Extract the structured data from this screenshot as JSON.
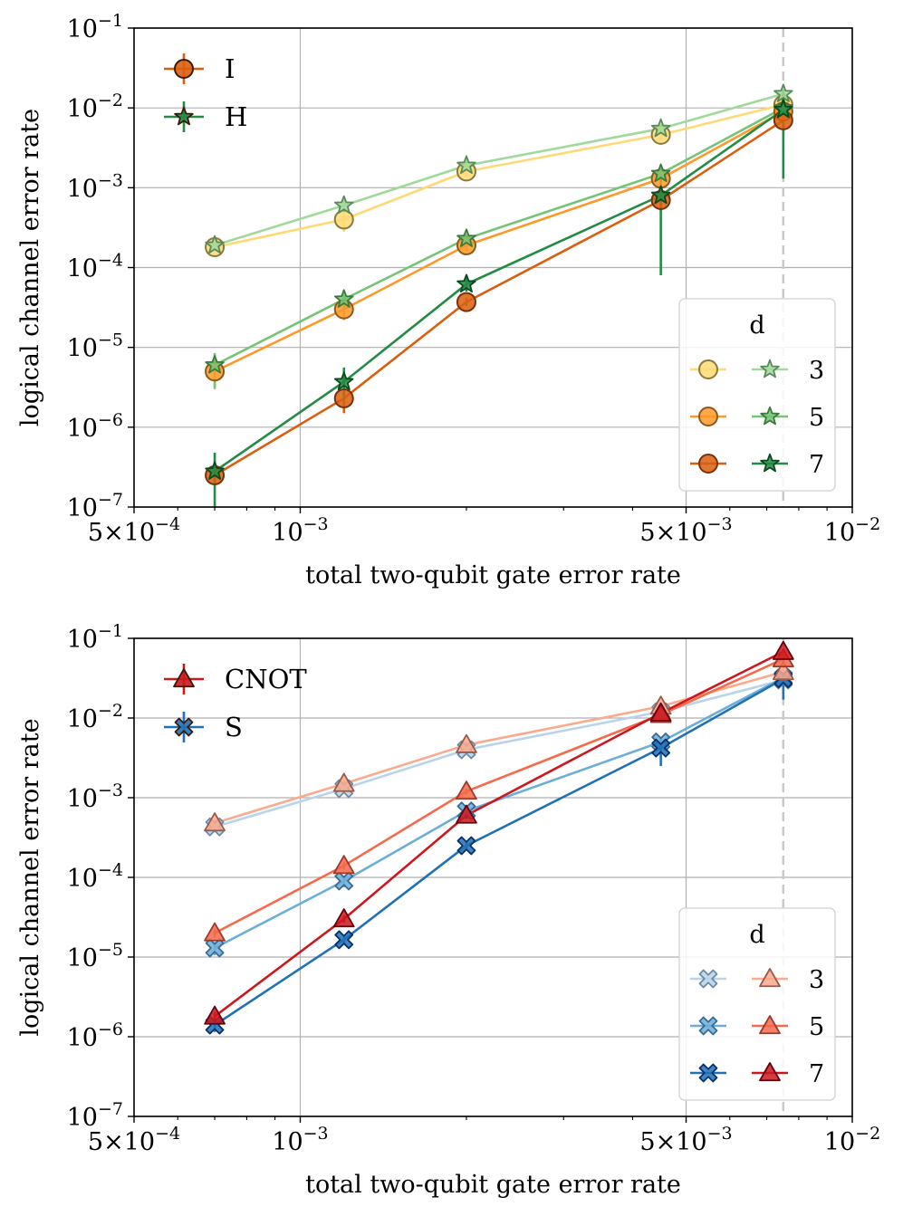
{
  "chart_data": [
    {
      "type": "line",
      "xscale": "log",
      "yscale": "log",
      "xlabel": "total two-qubit gate error rate",
      "ylabel": "logical channel error rate",
      "xlim": [
        0.0005,
        0.01
      ],
      "ylim": [
        1e-07,
        0.1
      ],
      "x_ticks": [
        {
          "value": 0.0005,
          "base": "5×10",
          "exp": "−4"
        },
        {
          "value": 0.001,
          "base": "10",
          "exp": "−3"
        },
        {
          "value": 0.005,
          "base": "5×10",
          "exp": "−3"
        },
        {
          "value": 0.01,
          "base": "10",
          "exp": "−2"
        }
      ],
      "y_ticks": [
        {
          "value": 1e-07,
          "base": "10",
          "exp": "−7"
        },
        {
          "value": 1e-06,
          "base": "10",
          "exp": "−6"
        },
        {
          "value": 1e-05,
          "base": "10",
          "exp": "−5"
        },
        {
          "value": 0.0001,
          "base": "10",
          "exp": "−4"
        },
        {
          "value": 0.001,
          "base": "10",
          "exp": "−3"
        },
        {
          "value": 0.01,
          "base": "10",
          "exp": "−2"
        },
        {
          "value": 0.1,
          "base": "10",
          "exp": "−1"
        }
      ],
      "threshold_x": 0.0075,
      "grid": true,
      "gate_legend": {
        "position": "top-left",
        "entries": [
          {
            "label": "I",
            "marker": "circle",
            "color": "#d95f0e"
          },
          {
            "label": "H",
            "marker": "star",
            "color": "#238b45"
          }
        ]
      },
      "d_legend": {
        "position": "bottom-right",
        "title": "d",
        "labels": [
          "3",
          "5",
          "7"
        ]
      },
      "x": [
        0.0007,
        0.0012,
        0.002,
        0.0045,
        0.0075
      ],
      "series": [
        {
          "name": "I",
          "d": "3",
          "marker": "circle",
          "color": "#fed976",
          "edge": "#8c7a3a",
          "values": [
            0.00018,
            0.0004,
            0.0016,
            0.0046,
            0.011
          ],
          "err_low": [
            0.00016,
            0.00028,
            0.0014,
            0.004,
            0.009
          ],
          "err_high": [
            0.0002,
            0.00052,
            0.0018,
            0.0052,
            0.013
          ]
        },
        {
          "name": "I",
          "d": "5",
          "marker": "circle",
          "color": "#fe9929",
          "edge": "#8c5a1a",
          "values": [
            5e-06,
            3e-05,
            0.00019,
            0.0013,
            0.009
          ],
          "err_low": [
            3.2e-06,
            2.2e-05,
            0.00016,
            0.00095,
            0.007
          ],
          "err_high": [
            7.5e-06,
            3.8e-05,
            0.00022,
            0.0016,
            0.011
          ]
        },
        {
          "name": "I",
          "d": "7",
          "marker": "circle",
          "color": "#d95f0e",
          "edge": "#7a300a",
          "values": [
            2.5e-07,
            2.3e-06,
            3.7e-05,
            0.0007,
            0.007
          ],
          "err_low": [
            2e-07,
            1.5e-06,
            3.3e-05,
            0.0005,
            0.005
          ],
          "err_high": [
            3e-07,
            2.7e-06,
            4.2e-05,
            0.001,
            0.009
          ]
        },
        {
          "name": "H",
          "d": "3",
          "marker": "star",
          "color": "#a1d99b",
          "edge": "#5a8a5a",
          "values": [
            0.00019,
            0.0006,
            0.0019,
            0.0055,
            0.015
          ],
          "err_low": [
            0.00017,
            0.00048,
            0.0017,
            0.0048,
            0.013
          ],
          "err_high": [
            0.00021,
            0.00072,
            0.0022,
            0.0062,
            0.017
          ]
        },
        {
          "name": "H",
          "d": "5",
          "marker": "star",
          "color": "#74c476",
          "edge": "#3a7a3a",
          "values": [
            6e-06,
            4e-05,
            0.00023,
            0.0015,
            0.01
          ],
          "err_low": [
            3e-06,
            3e-05,
            0.0002,
            0.0011,
            0.008
          ],
          "err_high": [
            8.5e-06,
            5e-05,
            0.00026,
            0.0019,
            0.012
          ]
        },
        {
          "name": "H",
          "d": "7",
          "marker": "star",
          "color": "#238b45",
          "edge": "#0a4a1a",
          "values": [
            2.8e-07,
            3.7e-06,
            6.2e-05,
            0.0008,
            0.0095
          ],
          "err_low": [
            1e-07,
            2.2e-06,
            5e-05,
            8e-05,
            0.0013
          ],
          "err_high": [
            4.8e-07,
            5.6e-06,
            7.5e-05,
            0.0015,
            0.017
          ]
        }
      ]
    },
    {
      "type": "line",
      "xscale": "log",
      "yscale": "log",
      "xlabel": "total two-qubit gate error rate",
      "ylabel": "logical channel error rate",
      "xlim": [
        0.0005,
        0.01
      ],
      "ylim": [
        1e-07,
        0.1
      ],
      "x_ticks": [
        {
          "value": 0.0005,
          "base": "5×10",
          "exp": "−4"
        },
        {
          "value": 0.001,
          "base": "10",
          "exp": "−3"
        },
        {
          "value": 0.005,
          "base": "5×10",
          "exp": "−3"
        },
        {
          "value": 0.01,
          "base": "10",
          "exp": "−2"
        }
      ],
      "y_ticks": [
        {
          "value": 1e-07,
          "base": "10",
          "exp": "−7"
        },
        {
          "value": 1e-06,
          "base": "10",
          "exp": "−6"
        },
        {
          "value": 1e-05,
          "base": "10",
          "exp": "−5"
        },
        {
          "value": 0.0001,
          "base": "10",
          "exp": "−4"
        },
        {
          "value": 0.001,
          "base": "10",
          "exp": "−3"
        },
        {
          "value": 0.01,
          "base": "10",
          "exp": "−2"
        },
        {
          "value": 0.1,
          "base": "10",
          "exp": "−1"
        }
      ],
      "threshold_x": 0.0075,
      "grid": true,
      "gate_legend": {
        "position": "top-left",
        "entries": [
          {
            "label": "CNOT",
            "marker": "triangle",
            "color": "#cb181d"
          },
          {
            "label": "S",
            "marker": "x",
            "color": "#2171b5"
          }
        ]
      },
      "d_legend": {
        "position": "bottom-right",
        "title": "d",
        "labels": [
          "3",
          "5",
          "7"
        ]
      },
      "x": [
        0.0007,
        0.0012,
        0.002,
        0.0045,
        0.0075
      ],
      "series": [
        {
          "name": "S",
          "d": "3",
          "marker": "x",
          "color": "#b8d3ea",
          "edge": "#6e8aa6",
          "values": [
            0.00043,
            0.0013,
            0.004,
            0.012,
            0.03
          ],
          "err_low": [
            0.00039,
            0.00115,
            0.0036,
            0.0105,
            0.026
          ],
          "err_high": [
            0.00047,
            0.00145,
            0.0044,
            0.0135,
            0.034
          ]
        },
        {
          "name": "S",
          "d": "5",
          "marker": "x",
          "color": "#6baed6",
          "edge": "#3a6a96",
          "values": [
            1.3e-05,
            9e-05,
            0.00068,
            0.005,
            0.032
          ],
          "err_low": [
            1.05e-05,
            7.5e-05,
            0.0006,
            0.0043,
            0.027
          ],
          "err_high": [
            1.55e-05,
            0.000105,
            0.00076,
            0.0057,
            0.037
          ]
        },
        {
          "name": "S",
          "d": "7",
          "marker": "x",
          "color": "#2171b5",
          "edge": "#08306b",
          "values": [
            1.4e-06,
            1.65e-05,
            0.00025,
            0.0042,
            0.031
          ],
          "err_low": [
            1.15e-06,
            1.45e-05,
            0.00022,
            0.0025,
            0.017
          ],
          "err_high": [
            1.65e-06,
            1.85e-05,
            0.00028,
            0.0058,
            0.045
          ]
        },
        {
          "name": "CNOT",
          "d": "3",
          "marker": "triangle",
          "color": "#fca98d",
          "edge": "#9a5a4a",
          "values": [
            0.00048,
            0.0015,
            0.0046,
            0.014,
            0.038
          ],
          "err_low": [
            0.00043,
            0.00135,
            0.0042,
            0.0125,
            0.034
          ],
          "err_high": [
            0.00053,
            0.00165,
            0.005,
            0.0155,
            0.042
          ]
        },
        {
          "name": "CNOT",
          "d": "5",
          "marker": "triangle",
          "color": "#f46a4b",
          "edge": "#9a3a2a",
          "values": [
            2e-05,
            0.00014,
            0.0012,
            0.011,
            0.055
          ],
          "err_low": [
            1.75e-05,
            0.000125,
            0.0011,
            0.0098,
            0.05
          ],
          "err_high": [
            2.25e-05,
            0.000155,
            0.0013,
            0.0122,
            0.06
          ]
        },
        {
          "name": "CNOT",
          "d": "7",
          "marker": "triangle",
          "color": "#cb181d",
          "edge": "#67000d",
          "values": [
            1.8e-06,
            3e-05,
            0.0006,
            0.0115,
            0.068
          ],
          "err_low": [
            1.55e-06,
            2.7e-05,
            0.00054,
            0.0103,
            0.062
          ],
          "err_high": [
            2.05e-06,
            3.3e-05,
            0.00066,
            0.0127,
            0.074
          ]
        }
      ]
    }
  ]
}
